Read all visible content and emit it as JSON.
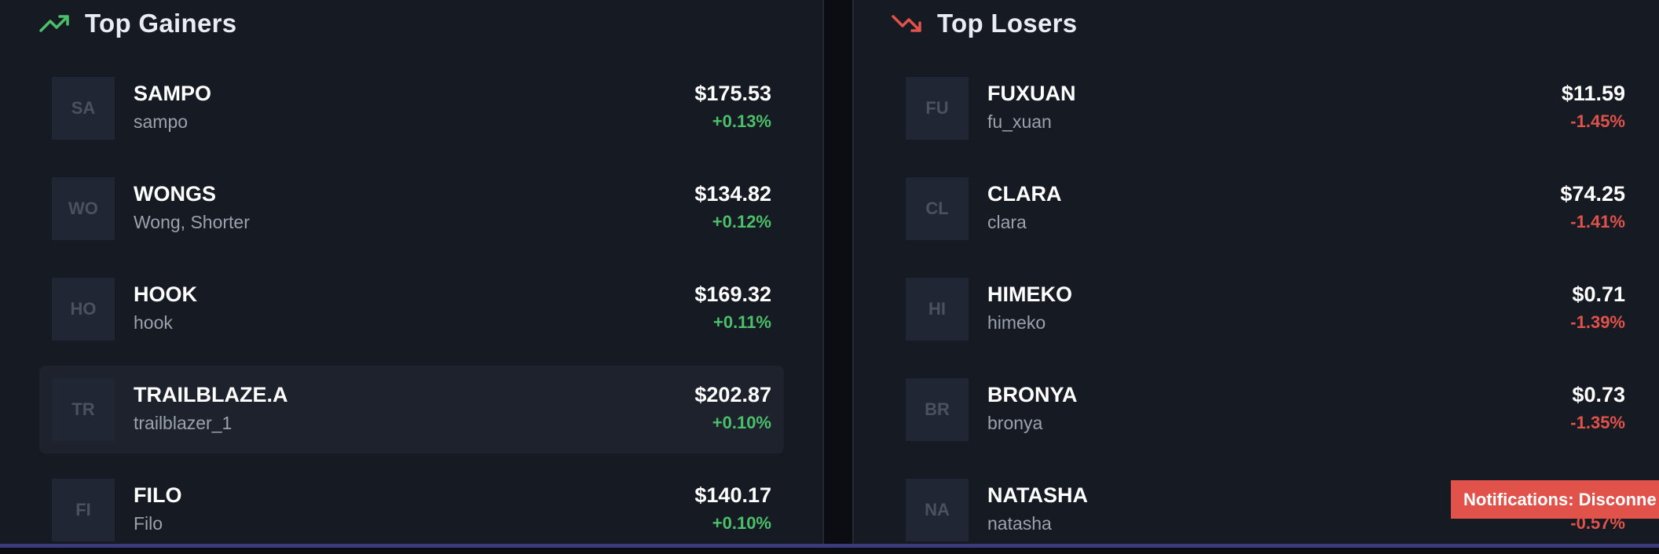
{
  "gainers": {
    "title": "Top Gainers",
    "icon": "trending-up-icon",
    "color": "#4cbf6a",
    "items": [
      {
        "initials": "SA",
        "ticker": "SAMPO",
        "name": "sampo",
        "price": "$175.53",
        "change": "+0.13%"
      },
      {
        "initials": "WO",
        "ticker": "WONGS",
        "name": "Wong, Shorter",
        "price": "$134.82",
        "change": "+0.12%"
      },
      {
        "initials": "HO",
        "ticker": "HOOK",
        "name": "hook",
        "price": "$169.32",
        "change": "+0.11%"
      },
      {
        "initials": "TR",
        "ticker": "TRAILBLAZE.A",
        "name": "trailblazer_1",
        "price": "$202.87",
        "change": "+0.10%",
        "highlighted": true
      },
      {
        "initials": "FI",
        "ticker": "FILO",
        "name": "Filo",
        "price": "$140.17",
        "change": "+0.10%"
      }
    ]
  },
  "losers": {
    "title": "Top Losers",
    "icon": "trending-down-icon",
    "color": "#e0524a",
    "items": [
      {
        "initials": "FU",
        "ticker": "FUXUAN",
        "name": "fu_xuan",
        "price": "$11.59",
        "change": "-1.45%"
      },
      {
        "initials": "CL",
        "ticker": "CLARA",
        "name": "clara",
        "price": "$74.25",
        "change": "-1.41%"
      },
      {
        "initials": "HI",
        "ticker": "HIMEKO",
        "name": "himeko",
        "price": "$0.71",
        "change": "-1.39%"
      },
      {
        "initials": "BR",
        "ticker": "BRONYA",
        "name": "bronya",
        "price": "$0.73",
        "change": "-1.35%"
      },
      {
        "initials": "NA",
        "ticker": "NATASHA",
        "name": "natasha",
        "price": "",
        "change": "-0.57%"
      }
    ]
  },
  "notification": {
    "text": "Notifications: Disconne",
    "color": "#e0524a"
  }
}
